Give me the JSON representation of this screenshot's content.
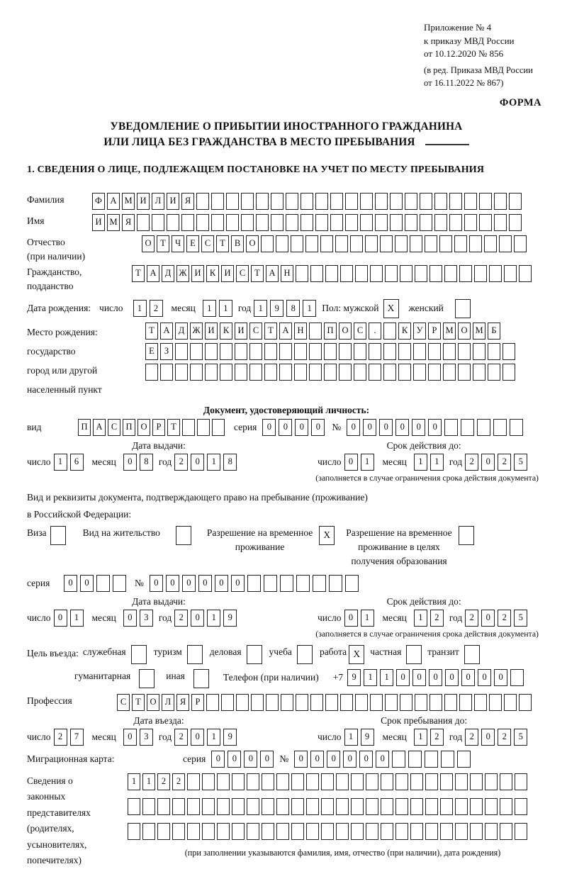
{
  "annex": {
    "lines_top": [
      "Приложение № 4",
      "к приказу МВД России",
      "от 10.12.2020 № 856"
    ],
    "lines_bottom": [
      "(в ред. Приказа МВД России",
      "от 16.11.2022 № 867)"
    ],
    "forma": "ФОРМА"
  },
  "title": {
    "line1": "УВЕДОМЛЕНИЕ О ПРИБЫТИИ ИНОСТРАННОГО ГРАЖДАНИНА",
    "line2": "ИЛИ ЛИЦА БЕЗ ГРАЖДАНСТВА В МЕСТО ПРЕБЫВАНИЯ"
  },
  "section1_heading": "1. СВЕДЕНИЯ О ЛИЦЕ, ПОДЛЕЖАЩЕМ ПОСТАНОВКЕ НА УЧЕТ ПО МЕСТУ ПРЕБЫВАНИЯ",
  "person": {
    "surname": {
      "label": "Фамилия",
      "boxes": {
        "chars": "ФАМИЛИЯ",
        "count": 29
      }
    },
    "firstname": {
      "label": "Имя",
      "boxes": {
        "chars": "ИМЯ",
        "count": 29
      }
    },
    "patronymic": {
      "label": [
        "Отчество",
        "(при наличии)"
      ],
      "boxes": {
        "chars": "ОТЧЕСТВО",
        "count": 26
      }
    },
    "citizenship": {
      "label": [
        "Гражданство,",
        "подданство"
      ],
      "boxes": {
        "chars": "ТАДЖИКИСТАН",
        "count": 27
      }
    },
    "birth_date": {
      "label": "Дата рождения:",
      "day_label": "число",
      "day": "12",
      "month_label": "месяц",
      "month": "11",
      "year_label": "год",
      "year": "1981",
      "sex_label": "Пол: мужской",
      "male_mark": "X",
      "female_label": "женский",
      "female_mark": ""
    },
    "birth_place": {
      "label": [
        "Место рождения:",
        "государство",
        "город или другой",
        "населенный пункт"
      ],
      "row1": {
        "chars": "ТАДЖИКИСТАН ПОС. КУРМОМБ",
        "count": 24
      },
      "row2": {
        "chars": "ЕЗ",
        "count": 25
      },
      "row3": {
        "chars": "",
        "count": 25
      }
    }
  },
  "identity_doc": {
    "heading": "Документ, удостоверяющий личность:",
    "kind_label": "вид",
    "kind_boxes": {
      "chars": "ПАСПОРТ",
      "count": 10
    },
    "series_label": "серия",
    "series_boxes": {
      "chars": "0000",
      "count": 4
    },
    "number_label": "№",
    "number_boxes": {
      "chars": "000000",
      "count": 11
    },
    "issue": {
      "heading": "Дата выдачи:",
      "day_label": "число",
      "day": "16",
      "month_label": "месяц",
      "month": "08",
      "year_label": "год",
      "year": "2018"
    },
    "valid": {
      "heading": "Срок действия до:",
      "day_label": "число",
      "day": "01",
      "month_label": "месяц",
      "month": "11",
      "year_label": "год",
      "year": "2025"
    },
    "note": "(заполняется в случае ограничения срока действия документа)"
  },
  "residence_doc": {
    "intro1": "Вид и реквизиты документа, подтверждающего право на пребывание (проживание)",
    "intro2": "в Российской Федерации:",
    "options": [
      {
        "label": [
          "Виза"
        ],
        "mark": ""
      },
      {
        "label": [
          "Вид на жительство"
        ],
        "mark": ""
      },
      {
        "label": [
          "Разрешение на временное",
          "проживание"
        ],
        "mark": "X"
      },
      {
        "label": [
          "Разрешение на временное",
          "проживание в целях",
          "получения образования"
        ],
        "mark": ""
      }
    ],
    "series_label": "серия",
    "series_boxes": {
      "chars": "00",
      "count": 4
    },
    "number_label": "№",
    "number_boxes": {
      "chars": "000000",
      "count": 13
    },
    "issue": {
      "heading": "Дата выдачи:",
      "day_label": "число",
      "day": "01",
      "month_label": "месяц",
      "month": "03",
      "year_label": "год",
      "year": "2019"
    },
    "valid": {
      "heading": "Срок действия до:",
      "day_label": "число",
      "day": "01",
      "month_label": "месяц",
      "month": "12",
      "year_label": "год",
      "year": "2025"
    },
    "note": "(заполняется в случае ограничения срока действия документа)"
  },
  "entry_purpose": {
    "label": "Цель въезда:",
    "row1": [
      {
        "label": "служебная",
        "mark": ""
      },
      {
        "label": "туризм",
        "mark": ""
      },
      {
        "label": "деловая",
        "mark": ""
      },
      {
        "label": "учеба",
        "mark": ""
      },
      {
        "label": "работа",
        "mark": "X"
      },
      {
        "label": "частная",
        "mark": ""
      },
      {
        "label": "транзит",
        "mark": ""
      }
    ],
    "row2": [
      {
        "label": "гуманитарная",
        "mark": ""
      },
      {
        "label": "иная",
        "mark": ""
      }
    ],
    "phone_label": "Телефон (при наличии)",
    "phone_prefix": "+7",
    "phone_boxes": {
      "chars": "9110000000",
      "count": 11
    },
    "profession_label": "Профессия",
    "profession_boxes": {
      "chars": "СТОЛЯР",
      "count": 28
    }
  },
  "entry_dates": {
    "entry": {
      "heading": "Дата въезда:",
      "day_label": "число",
      "day": "27",
      "month_label": "месяц",
      "month": "03",
      "year_label": "год",
      "year": "2019"
    },
    "stay": {
      "heading": "Срок пребывания до:",
      "day_label": "число",
      "day": "19",
      "month_label": "месяц",
      "month": "12",
      "year_label": "год",
      "year": "2025"
    }
  },
  "migration_card": {
    "label": "Миграционная карта:",
    "series_label": "серия",
    "series_boxes": {
      "chars": "0000",
      "count": 4
    },
    "number_label": "№",
    "number_boxes": {
      "chars": "000000",
      "count": 11
    }
  },
  "representatives": {
    "label": [
      "Сведения о",
      "законных",
      "представителях",
      "(родителях,",
      "усыновителях,",
      "попечителях)"
    ],
    "rows": [
      {
        "chars": "1122",
        "count": 27
      },
      {
        "chars": "",
        "count": 27
      },
      {
        "chars": "",
        "count": 27
      }
    ],
    "note": "(при заполнении указываются фамилия, имя, отчество (при наличии), дата рождения)"
  }
}
